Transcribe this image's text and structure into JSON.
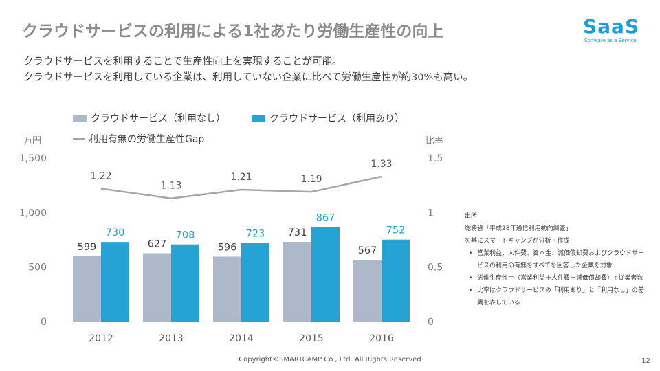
{
  "title": "クラウドサービスの利用による1社あたり労働生産性の向上",
  "logo": {
    "main": "SaaS",
    "sub": "Software as a Service"
  },
  "description": [
    "クラウドサービスを利用することで生産性向上を実現することが可能。",
    "クラウドサービスを利用している企業は、利用していない企業に比べて労働生産性が約30%も高い。"
  ],
  "colors": {
    "series_a": "#adb9ca",
    "series_b": "#25a3d4",
    "gap_line": "#a6a6a6",
    "accent": "#1a9fd8"
  },
  "chart_data": {
    "type": "bar",
    "categories": [
      "2012",
      "2013",
      "2014",
      "2015",
      "2016"
    ],
    "series": [
      {
        "name": "クラウドサービス（利用なし）",
        "values": [
          599,
          627,
          596,
          731,
          567
        ]
      },
      {
        "name": "クラウドサービス（利用あり）",
        "values": [
          730,
          708,
          723,
          867,
          752
        ]
      }
    ],
    "line_series": {
      "name": "利用有無の労働生産性Gap",
      "values": [
        1.22,
        1.13,
        1.21,
        1.19,
        1.33
      ]
    },
    "ylabel_left": "万円",
    "ylabel_right": "比率",
    "ylim_left": [
      0,
      1500
    ],
    "ylim_right": [
      0,
      1.5
    ],
    "yticks_left": [
      "0",
      "500",
      "1,000",
      "1,500"
    ],
    "yticks_right": [
      "0",
      "0.5",
      "1",
      "1.5"
    ],
    "grid": false
  },
  "notes": {
    "heading": "出所",
    "source_line1": "総務省「平成28年通信利用動向調査」",
    "source_line2": "を基にスマートキャンプが分析・作成",
    "bullets": [
      "営業利益、人件費、資本金、減価償却費およびクラウドサービスの利用の有無をすべてを回答した企業を対象",
      "労働生産性＝（営業利益＋人件費＋減価償却費）÷従業者数",
      "比率はクラウドサービスの「利用あり」と「利用なし」の差異を表している"
    ]
  },
  "footer": "Copyright©SMARTCAMP Co., Ltd. All Rights Reserved",
  "page_number": "12"
}
